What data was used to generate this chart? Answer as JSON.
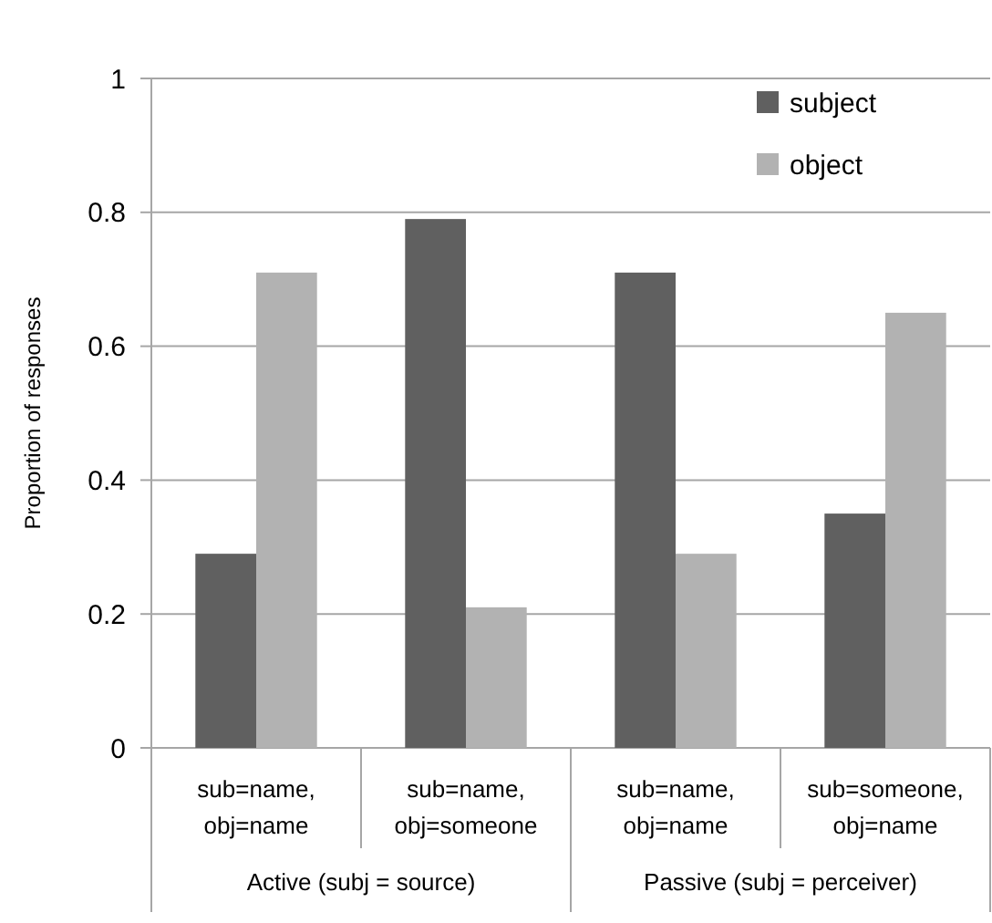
{
  "chart_data": {
    "type": "bar",
    "ylabel": "Proportion of responses",
    "categories": [
      "sub=name, obj=name",
      "sub=name, obj=someone",
      "sub=name, obj=name",
      "sub=someone, obj=name"
    ],
    "series": [
      {
        "name": "subject",
        "color": "#606060",
        "values": [
          0.29,
          0.79,
          0.71,
          0.35
        ]
      },
      {
        "name": "object",
        "color": "#b2b2b2",
        "values": [
          0.71,
          0.21,
          0.29,
          0.65
        ]
      }
    ],
    "annotations": [
      "Active (subj = source)",
      "Passive (subj = perceiver)"
    ],
    "ylim": [
      0,
      1
    ],
    "yticks": [
      0,
      0.2,
      0.4,
      0.6,
      0.8,
      {
        "value": 1,
        "label": "1"
      }
    ],
    "grid": "y",
    "legend": "top right"
  }
}
